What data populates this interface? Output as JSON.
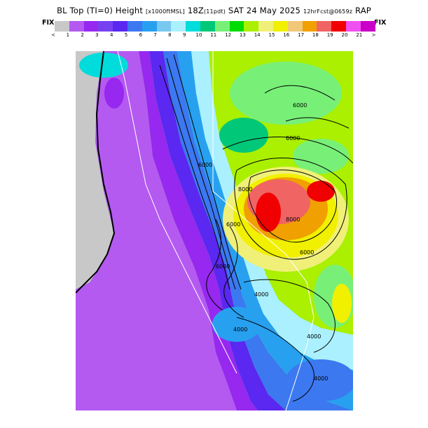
{
  "title": {
    "main": "BL Top (TI=0) Height",
    "units": "[x1000ftMSL]",
    "time": "18Z",
    "period": "(11pdt)",
    "date": "SAT 24 May 2025",
    "forecast": "12hrFcst@0659z",
    "model": "RAP"
  },
  "fix_left": "FIX",
  "fix_right": "FIX",
  "colorbar": {
    "colors": [
      "#c8c8c8",
      "#b45af0",
      "#9628f0",
      "#7841f0",
      "#5a28f0",
      "#3c78f0",
      "#28a0f0",
      "#78c8f0",
      "#aaf0ff",
      "#00dcdc",
      "#00c878",
      "#78f078",
      "#00dc00",
      "#aaf000",
      "#f0f078",
      "#f0f000",
      "#f0c878",
      "#f0a000",
      "#f06464",
      "#f00000",
      "#f050f0",
      "#c800c8"
    ],
    "tick_labels": [
      "<",
      "1",
      "2",
      "3",
      "4",
      "5",
      "6",
      "7",
      "8",
      "9",
      "10",
      "11",
      "12",
      "13",
      "14",
      "15",
      "16",
      "17",
      "18",
      "19",
      "20",
      "21",
      ">"
    ]
  },
  "contour_labels": [
    "6000",
    "6000",
    "8000",
    "8000",
    "6000",
    "6000",
    "6000",
    "6000",
    "4000",
    "4000",
    "4000",
    "4000"
  ],
  "map_colors": {
    "ocean_gray": "#c8c8c8",
    "purple": "#b45af0",
    "violet": "#9628f0",
    "indigo": "#5a28f0",
    "blue": "#3c78f0",
    "sky": "#28a0f0",
    "lightblue": "#aaf0ff",
    "cyan": "#00dcdc",
    "green": "#78f078",
    "yellowgreen": "#aaf000",
    "paleyellow": "#f0f078",
    "yellow": "#f0f000",
    "orange": "#f0a000",
    "red": "#f00000",
    "salmon": "#f06464"
  }
}
